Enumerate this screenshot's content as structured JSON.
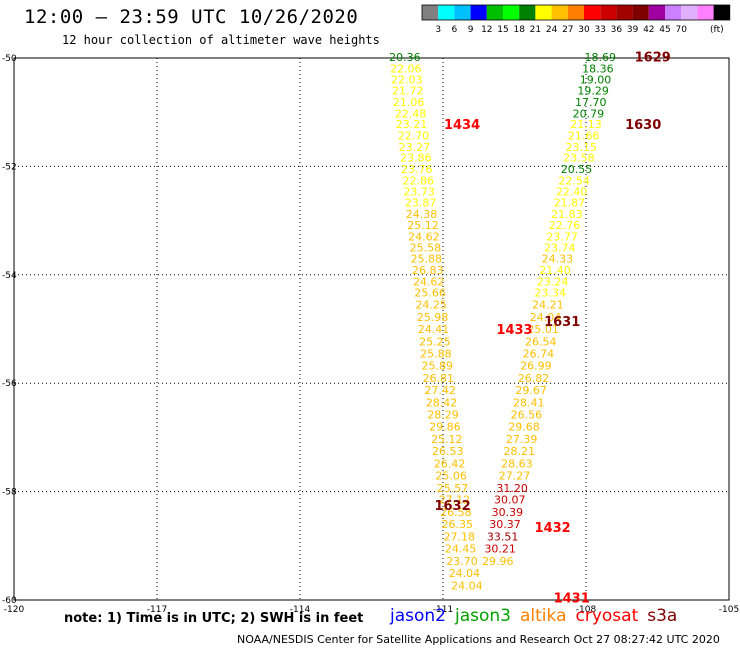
{
  "header": {
    "title": "12:00 – 23:59 UTC 10/26/2020",
    "subtitle": "12 hour collection of altimeter wave heights"
  },
  "color_legend": {
    "colors": [
      "#808080",
      "#00ffff",
      "#00bfff",
      "#0000ff",
      "#00bf00",
      "#00ff00",
      "#008000",
      "#ffff00",
      "#ffc000",
      "#ff8000",
      "#ff0000",
      "#cc0000",
      "#a00000",
      "#800000",
      "#a000a0",
      "#cc80ff",
      "#e0b0ff",
      "#ff80ff",
      "#000000"
    ],
    "labels": [
      "3",
      "6",
      "9",
      "12",
      "15",
      "18",
      "21",
      "24",
      "27",
      "30",
      "33",
      "36",
      "39",
      "42",
      "45",
      "70",
      "(ft)"
    ]
  },
  "chart_data": {
    "type": "scatter",
    "xlim": [
      -120,
      -105
    ],
    "ylim": [
      -60,
      -50
    ],
    "x_ticks": [
      "-120",
      "-117",
      "-114",
      "-111",
      "-108",
      "-105"
    ],
    "y_ticks": [
      "-50",
      "-52",
      "-54",
      "-56",
      "-58",
      "-60"
    ],
    "grid": true,
    "passes": [
      {
        "label": "1434",
        "label_color": "#ff0000",
        "label_lon": -110.6,
        "label_lat": -51.22
      },
      {
        "label": "1433",
        "label_color": "#ff0000",
        "label_lon": -109.5,
        "label_lat": -55.0
      },
      {
        "label": "1432",
        "label_color": "#ff0000",
        "label_lon": -108.7,
        "label_lat": -58.65
      },
      {
        "label": "1431",
        "label_color": "#ff0000",
        "label_lon": -108.3,
        "label_lat": -59.95
      },
      {
        "label": "1629",
        "label_color": "#800000",
        "label_lon": -106.6,
        "label_lat": -49.97
      },
      {
        "label": "1630",
        "label_color": "#800000",
        "label_lon": -106.8,
        "label_lat": -51.22
      },
      {
        "label": "1631",
        "label_color": "#800000",
        "label_lon": -108.5,
        "label_lat": -54.85
      },
      {
        "label": "1632",
        "label_color": "#800000",
        "label_lon": -110.8,
        "label_lat": -58.25
      }
    ],
    "points": [
      {
        "lon": -111.8,
        "lat": -49.98,
        "value": "20.36",
        "color": "#008000"
      },
      {
        "lon": -111.78,
        "lat": -50.19,
        "value": "22.06",
        "color": "#ffff00"
      },
      {
        "lon": -111.76,
        "lat": -50.4,
        "value": "22.03",
        "color": "#ffff00"
      },
      {
        "lon": -111.74,
        "lat": -50.6,
        "value": "21.72",
        "color": "#ffff00"
      },
      {
        "lon": -111.72,
        "lat": -50.81,
        "value": "21.06",
        "color": "#ffff00"
      },
      {
        "lon": -111.68,
        "lat": -51.02,
        "value": "22.48",
        "color": "#ffff00"
      },
      {
        "lon": -111.66,
        "lat": -51.22,
        "value": "23.21",
        "color": "#ffff00"
      },
      {
        "lon": -111.62,
        "lat": -51.43,
        "value": "22.70",
        "color": "#ffff00"
      },
      {
        "lon": -111.6,
        "lat": -51.64,
        "value": "23.27",
        "color": "#ffff00"
      },
      {
        "lon": -111.57,
        "lat": -51.84,
        "value": "23.86",
        "color": "#ffff00"
      },
      {
        "lon": -111.55,
        "lat": -52.05,
        "value": "23.76",
        "color": "#ffff00"
      },
      {
        "lon": -111.52,
        "lat": -52.26,
        "value": "22.86",
        "color": "#ffff00"
      },
      {
        "lon": -111.5,
        "lat": -52.46,
        "value": "23.73",
        "color": "#ffff00"
      },
      {
        "lon": -111.47,
        "lat": -52.67,
        "value": "23.87",
        "color": "#ffff00"
      },
      {
        "lon": -111.45,
        "lat": -52.88,
        "value": "24.38",
        "color": "#ffc000"
      },
      {
        "lon": -111.42,
        "lat": -53.08,
        "value": "25.12",
        "color": "#ffc000"
      },
      {
        "lon": -111.4,
        "lat": -53.29,
        "value": "24.62",
        "color": "#ffc000"
      },
      {
        "lon": -111.37,
        "lat": -53.5,
        "value": "25.58",
        "color": "#ffc000"
      },
      {
        "lon": -111.35,
        "lat": -53.7,
        "value": "25.88",
        "color": "#ffc000"
      },
      {
        "lon": -111.32,
        "lat": -53.91,
        "value": "26.83",
        "color": "#ffc000"
      },
      {
        "lon": -111.3,
        "lat": -54.12,
        "value": "24.62",
        "color": "#ffc000"
      },
      {
        "lon": -111.27,
        "lat": -54.33,
        "value": "25.66",
        "color": "#ffc000"
      },
      {
        "lon": -111.25,
        "lat": -54.55,
        "value": "24.25",
        "color": "#ffc000"
      },
      {
        "lon": -111.22,
        "lat": -54.78,
        "value": "25.98",
        "color": "#ffc000"
      },
      {
        "lon": -111.2,
        "lat": -55.0,
        "value": "24.41",
        "color": "#ffc000"
      },
      {
        "lon": -111.17,
        "lat": -55.23,
        "value": "25.25",
        "color": "#ffc000"
      },
      {
        "lon": -111.15,
        "lat": -55.45,
        "value": "25.88",
        "color": "#ffc000"
      },
      {
        "lon": -111.12,
        "lat": -55.67,
        "value": "25.89",
        "color": "#ffc000"
      },
      {
        "lon": -111.1,
        "lat": -55.9,
        "value": "26.81",
        "color": "#ffc000"
      },
      {
        "lon": -111.06,
        "lat": -56.13,
        "value": "27.42",
        "color": "#ffc000"
      },
      {
        "lon": -111.03,
        "lat": -56.36,
        "value": "28.42",
        "color": "#ffc000"
      },
      {
        "lon": -111.0,
        "lat": -56.58,
        "value": "28.29",
        "color": "#ffc000"
      },
      {
        "lon": -110.96,
        "lat": -56.8,
        "value": "29.86",
        "color": "#ffc000"
      },
      {
        "lon": -110.92,
        "lat": -57.03,
        "value": "25.12",
        "color": "#ffc000"
      },
      {
        "lon": -110.9,
        "lat": -57.25,
        "value": "26.53",
        "color": "#ffc000"
      },
      {
        "lon": -110.86,
        "lat": -57.48,
        "value": "26.42",
        "color": "#ffc000"
      },
      {
        "lon": -110.83,
        "lat": -57.7,
        "value": "25.06",
        "color": "#ffc000"
      },
      {
        "lon": -110.8,
        "lat": -57.93,
        "value": "25.57",
        "color": "#ffc000"
      },
      {
        "lon": -110.76,
        "lat": -58.15,
        "value": "27.12",
        "color": "#ffc000"
      },
      {
        "lon": -110.73,
        "lat": -58.38,
        "value": "26.58",
        "color": "#ffc000"
      },
      {
        "lon": -110.7,
        "lat": -58.6,
        "value": "26.35",
        "color": "#ffc000"
      },
      {
        "lon": -110.66,
        "lat": -58.83,
        "value": "27.18",
        "color": "#ffc000"
      },
      {
        "lon": -110.63,
        "lat": -59.05,
        "value": "24.45",
        "color": "#ffc000"
      },
      {
        "lon": -110.6,
        "lat": -59.28,
        "value": "23.70",
        "color": "#ffc000"
      },
      {
        "lon": -110.55,
        "lat": -59.5,
        "value": "24.04",
        "color": "#ffc000"
      },
      {
        "lon": -110.5,
        "lat": -59.73,
        "value": "24.04",
        "color": "#ffc000"
      },
      {
        "lon": -107.7,
        "lat": -49.98,
        "value": "18.69",
        "color": "#008000"
      },
      {
        "lon": -107.75,
        "lat": -50.19,
        "value": "18.36",
        "color": "#008000"
      },
      {
        "lon": -107.8,
        "lat": -50.4,
        "value": "19.00",
        "color": "#008000"
      },
      {
        "lon": -107.85,
        "lat": -50.6,
        "value": "19.29",
        "color": "#008000"
      },
      {
        "lon": -107.9,
        "lat": -50.81,
        "value": "17.70",
        "color": "#008000"
      },
      {
        "lon": -107.95,
        "lat": -51.02,
        "value": "20.79",
        "color": "#008000"
      },
      {
        "lon": -108.0,
        "lat": -51.22,
        "value": "21.13",
        "color": "#ffff00"
      },
      {
        "lon": -108.05,
        "lat": -51.43,
        "value": "21.66",
        "color": "#ffff00"
      },
      {
        "lon": -108.1,
        "lat": -51.64,
        "value": "23.15",
        "color": "#ffff00"
      },
      {
        "lon": -108.15,
        "lat": -51.84,
        "value": "23.58",
        "color": "#ffff00"
      },
      {
        "lon": -108.2,
        "lat": -52.05,
        "value": "20.55",
        "color": "#008000"
      },
      {
        "lon": -108.25,
        "lat": -52.26,
        "value": "22.54",
        "color": "#ffff00"
      },
      {
        "lon": -108.3,
        "lat": -52.46,
        "value": "22.40",
        "color": "#ffff00"
      },
      {
        "lon": -108.35,
        "lat": -52.67,
        "value": "21.87",
        "color": "#ffff00"
      },
      {
        "lon": -108.4,
        "lat": -52.88,
        "value": "21.83",
        "color": "#ffff00"
      },
      {
        "lon": -108.45,
        "lat": -53.08,
        "value": "22.76",
        "color": "#ffff00"
      },
      {
        "lon": -108.5,
        "lat": -53.29,
        "value": "23.77",
        "color": "#ffff00"
      },
      {
        "lon": -108.55,
        "lat": -53.5,
        "value": "23.74",
        "color": "#ffff00"
      },
      {
        "lon": -108.6,
        "lat": -53.7,
        "value": "24.33",
        "color": "#ffc000"
      },
      {
        "lon": -108.65,
        "lat": -53.91,
        "value": "21.40",
        "color": "#ffff00"
      },
      {
        "lon": -108.7,
        "lat": -54.12,
        "value": "23.24",
        "color": "#ffff00"
      },
      {
        "lon": -108.75,
        "lat": -54.33,
        "value": "23.34",
        "color": "#ffff00"
      },
      {
        "lon": -108.8,
        "lat": -54.55,
        "value": "24.21",
        "color": "#ffc000"
      },
      {
        "lon": -108.85,
        "lat": -54.78,
        "value": "24.04",
        "color": "#ffc000"
      },
      {
        "lon": -108.9,
        "lat": -55.0,
        "value": "25.01",
        "color": "#ffc000"
      },
      {
        "lon": -108.95,
        "lat": -55.23,
        "value": "26.54",
        "color": "#ffc000"
      },
      {
        "lon": -109.0,
        "lat": -55.45,
        "value": "26.74",
        "color": "#ffc000"
      },
      {
        "lon": -109.05,
        "lat": -55.67,
        "value": "26.99",
        "color": "#ffc000"
      },
      {
        "lon": -109.1,
        "lat": -55.9,
        "value": "26.82",
        "color": "#ffc000"
      },
      {
        "lon": -109.15,
        "lat": -56.13,
        "value": "29.67",
        "color": "#ffc000"
      },
      {
        "lon": -109.2,
        "lat": -56.36,
        "value": "28.41",
        "color": "#ffc000"
      },
      {
        "lon": -109.25,
        "lat": -56.58,
        "value": "26.56",
        "color": "#ffc000"
      },
      {
        "lon": -109.3,
        "lat": -56.8,
        "value": "29.68",
        "color": "#ffc000"
      },
      {
        "lon": -109.35,
        "lat": -57.03,
        "value": "27.39",
        "color": "#ffc000"
      },
      {
        "lon": -109.4,
        "lat": -57.25,
        "value": "28.21",
        "color": "#ffc000"
      },
      {
        "lon": -109.45,
        "lat": -57.48,
        "value": "28.63",
        "color": "#ffc000"
      },
      {
        "lon": -109.5,
        "lat": -57.7,
        "value": "27.27",
        "color": "#ffc000"
      },
      {
        "lon": -109.55,
        "lat": -57.93,
        "value": "31.20",
        "color": "#cc0000"
      },
      {
        "lon": -109.6,
        "lat": -58.15,
        "value": "30.07",
        "color": "#cc0000"
      },
      {
        "lon": -109.65,
        "lat": -58.38,
        "value": "30.39",
        "color": "#cc0000"
      },
      {
        "lon": -109.7,
        "lat": -58.6,
        "value": "30.37",
        "color": "#cc0000"
      },
      {
        "lon": -109.75,
        "lat": -58.83,
        "value": "33.51",
        "color": "#a00000"
      },
      {
        "lon": -109.8,
        "lat": -59.05,
        "value": "30.21",
        "color": "#cc0000"
      },
      {
        "lon": -109.85,
        "lat": -59.28,
        "value": "29.96",
        "color": "#ffc000"
      }
    ]
  },
  "footer": {
    "note": "note:  1) Time is in UTC;  2) SWH is in feet",
    "satellites": [
      {
        "name": "jason2",
        "color": "#0000ff"
      },
      {
        "name": "jason3",
        "color": "#00a000"
      },
      {
        "name": "altika",
        "color": "#ff8000"
      },
      {
        "name": "cryosat",
        "color": "#ff0000"
      },
      {
        "name": "s3a",
        "color": "#800000"
      }
    ],
    "credit": "NOAA/NESDIS Center for Satellite Applications and Research    Oct 27 08:27:42 UTC 2020"
  }
}
